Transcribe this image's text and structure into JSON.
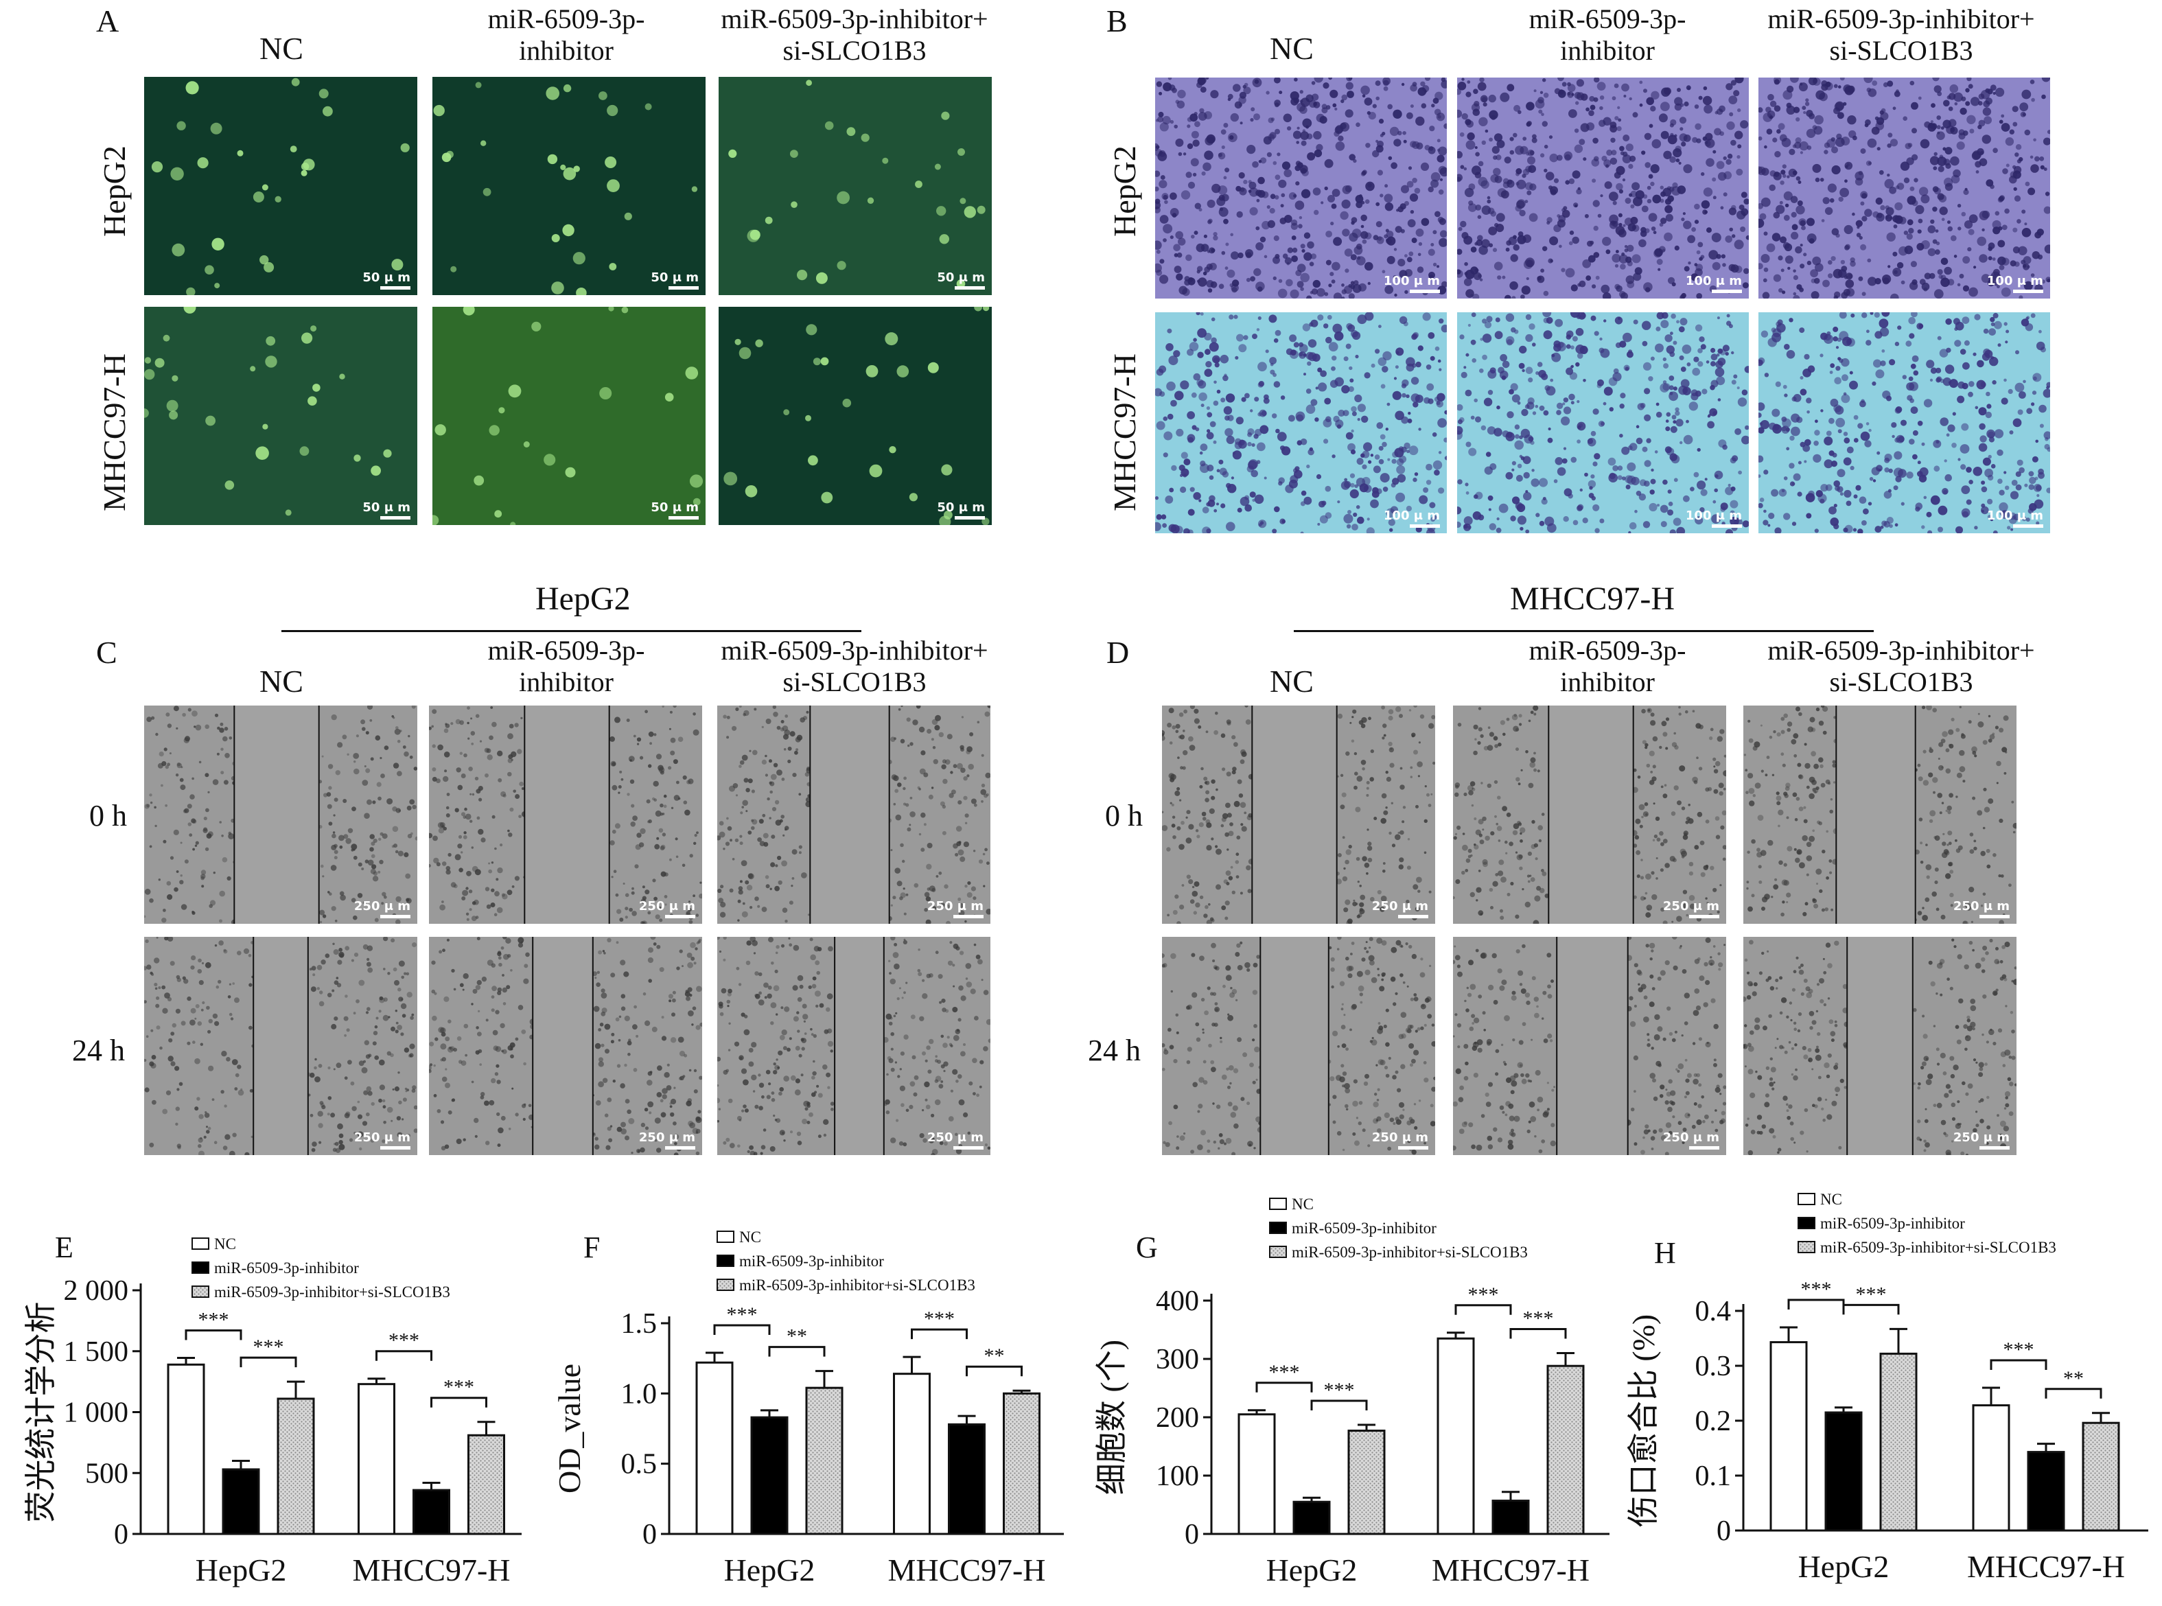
{
  "panels": {
    "A": {
      "letter": "A",
      "col_nc": "NC",
      "col_inh_1": "miR-6509-3p-",
      "col_inh_2": "inhibitor",
      "col_combo_1": "miR-6509-3p-inhibitor+",
      "col_combo_2": "si-SLCO1B3",
      "row1": "HepG2",
      "row2": "MHCC97-H",
      "scale": "50 μ m"
    },
    "B": {
      "letter": "B",
      "col_nc": "NC",
      "col_inh_1": "miR-6509-3p-",
      "col_inh_2": "inhibitor",
      "col_combo_1": "miR-6509-3p-inhibitor+",
      "col_combo_2": "si-SLCO1B3",
      "row1": "HepG2",
      "row2": "MHCC97-H",
      "scale": "100 μ m"
    },
    "C": {
      "letter": "C",
      "title": "HepG2",
      "col_nc": "NC",
      "col_inh_1": "miR-6509-3p-",
      "col_inh_2": "inhibitor",
      "col_combo_1": "miR-6509-3p-inhibitor+",
      "col_combo_2": "si-SLCO1B3",
      "row1": "0 h",
      "row2": "24 h",
      "scale": "250 μ m"
    },
    "D": {
      "letter": "D",
      "title": "MHCC97-H",
      "col_nc": "NC",
      "col_inh_1": "miR-6509-3p-",
      "col_inh_2": "inhibitor",
      "col_combo_1": "miR-6509-3p-inhibitor+",
      "col_combo_2": "si-SLCO1B3",
      "row1": "0 h",
      "row2": "24 h",
      "scale": "250 μ m"
    }
  },
  "legend": {
    "nc": "NC",
    "inhibitor": "miR-6509-3p-inhibitor",
    "combo": "miR-6509-3p-inhibitor+si-SLCO1B3"
  },
  "colors": {
    "nc": "#ffffff",
    "inhibitor": "#000000",
    "combo": "#c9c9c9",
    "fluor_dark": "#0f3b2a",
    "fluor_bright": "#2f6b2a",
    "stain": "#6f67b5",
    "stain_cyan": "#8fd0e0",
    "wound_gray": "#9a9a9a"
  },
  "chart_data": [
    {
      "type": "bar",
      "letter": "E",
      "categories": [
        "HepG2",
        "MHCC97-H"
      ],
      "ylabel": "荧光统计学分析",
      "ylim": [
        0,
        2000
      ],
      "yticks": [
        "0",
        "500",
        "1 000",
        "1 500",
        "2 000"
      ],
      "series": [
        {
          "name": "NC",
          "values": [
            1390,
            1230
          ],
          "errors": [
            55,
            45
          ]
        },
        {
          "name": "miR-6509-3p-inhibitor",
          "values": [
            530,
            360
          ],
          "errors": [
            70,
            60
          ]
        },
        {
          "name": "miR-6509-3p-inhibitor+si-SLCO1B3",
          "values": [
            1110,
            810
          ],
          "errors": [
            140,
            110
          ]
        }
      ],
      "significance": [
        [
          "***",
          "***"
        ],
        [
          "***",
          "***"
        ]
      ]
    },
    {
      "type": "bar",
      "letter": "F",
      "categories": [
        "HepG2",
        "MHCC97-H"
      ],
      "ylabel": "OD_value",
      "ylim": [
        0,
        1.5
      ],
      "yticks": [
        "0",
        "0.5",
        "1.0",
        "1.5"
      ],
      "series": [
        {
          "name": "NC",
          "values": [
            1.22,
            1.14
          ],
          "errors": [
            0.07,
            0.12
          ]
        },
        {
          "name": "miR-6509-3p-inhibitor",
          "values": [
            0.83,
            0.78
          ],
          "errors": [
            0.05,
            0.06
          ]
        },
        {
          "name": "miR-6509-3p-inhibitor+si-SLCO1B3",
          "values": [
            1.04,
            1.0
          ],
          "errors": [
            0.12,
            0.02
          ]
        }
      ],
      "significance": [
        [
          "***",
          "**"
        ],
        [
          "***",
          "**"
        ]
      ]
    },
    {
      "type": "bar",
      "letter": "G",
      "categories": [
        "HepG2",
        "MHCC97-H"
      ],
      "ylabel": "细胞数 (个)",
      "ylim": [
        0,
        400
      ],
      "yticks": [
        "0",
        "100",
        "200",
        "300",
        "400"
      ],
      "series": [
        {
          "name": "NC",
          "values": [
            205,
            335
          ],
          "errors": [
            7,
            10
          ]
        },
        {
          "name": "miR-6509-3p-inhibitor",
          "values": [
            55,
            57
          ],
          "errors": [
            7,
            15
          ]
        },
        {
          "name": "miR-6509-3p-inhibitor+si-SLCO1B3",
          "values": [
            177,
            288
          ],
          "errors": [
            10,
            22
          ]
        }
      ],
      "significance": [
        [
          "***",
          "***"
        ],
        [
          "***",
          "***"
        ]
      ]
    },
    {
      "type": "bar",
      "letter": "H",
      "categories": [
        "HepG2",
        "MHCC97-H"
      ],
      "ylabel": "伤口愈合比 (%)",
      "ylim": [
        0,
        0.4
      ],
      "yticks": [
        "0",
        "0.1",
        "0.2",
        "0.3",
        "0.4"
      ],
      "series": [
        {
          "name": "NC",
          "values": [
            0.343,
            0.228
          ],
          "errors": [
            0.027,
            0.032
          ]
        },
        {
          "name": "miR-6509-3p-inhibitor",
          "values": [
            0.215,
            0.143
          ],
          "errors": [
            0.009,
            0.015
          ]
        },
        {
          "name": "miR-6509-3p-inhibitor+si-SLCO1B3",
          "values": [
            0.322,
            0.196
          ],
          "errors": [
            0.045,
            0.018
          ]
        }
      ],
      "significance": [
        [
          "***",
          "***"
        ],
        [
          "***",
          "**"
        ]
      ]
    }
  ]
}
